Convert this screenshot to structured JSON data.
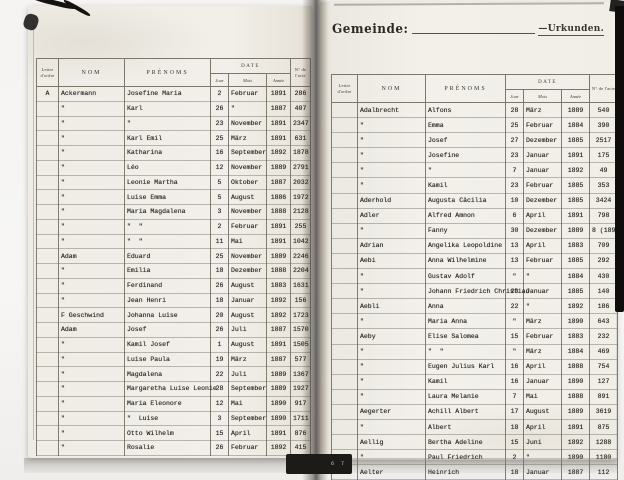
{
  "colors": {
    "page": "#f2efe9",
    "ink": "#2f2d29",
    "line": "#5b564d"
  },
  "right_header": {
    "gemeinde_label": "Gemeinde:",
    "urkunden_label": "—Urkunden.",
    "gutter_mark": "6 7"
  },
  "table_headers": {
    "lettre": "Lettre d'ordre",
    "nom": "NOM",
    "prenoms": "PRÉNOMS",
    "date": "DATE",
    "jour": "Jour",
    "mois": "Mois",
    "annee": "Année",
    "acte": "N° de l'acte"
  },
  "left_page": {
    "rows": [
      [
        "A",
        "Ackermann",
        "Josefine Maria",
        "2",
        "Februar",
        "1891",
        "286"
      ],
      [
        "",
        "\"",
        "Karl",
        "26",
        "\"",
        "1887",
        "407"
      ],
      [
        "",
        "\"",
        "\"",
        "23",
        "November",
        "1891",
        "2347"
      ],
      [
        "",
        "\"",
        "Karl Emil",
        "25",
        "März",
        "1891",
        "631"
      ],
      [
        "",
        "\"",
        "Katharina",
        "16",
        "September",
        "1892",
        "1878"
      ],
      [
        "",
        "\"",
        "Léo",
        "12",
        "November",
        "1889",
        "2791"
      ],
      [
        "",
        "\"",
        "Leonie Martha",
        "5",
        "Oktober",
        "1887",
        "2032"
      ],
      [
        "",
        "\"",
        "Luise Emma",
        "5",
        "August",
        "1886",
        "1972"
      ],
      [
        "",
        "\"",
        "Maria Magdalena",
        "3",
        "November",
        "1888",
        "2128"
      ],
      [
        "",
        "\"",
        "\"  \"",
        "2",
        "Februar",
        "1891",
        "255"
      ],
      [
        "",
        "\"",
        "\"  \"",
        "11",
        "Mai",
        "1891",
        "1042"
      ],
      [
        "",
        "Adam",
        "Eduard",
        "25",
        "November",
        "1889",
        "2246"
      ],
      [
        "",
        "\"",
        "Emilia",
        "18",
        "Dezember",
        "1888",
        "2204"
      ],
      [
        "",
        "\"",
        "Ferdinand",
        "26",
        "August",
        "1883",
        "1631"
      ],
      [
        "",
        "\"",
        "Jean Henri",
        "18",
        "Januar",
        "1892",
        "156"
      ],
      [
        "",
        "F Geschwind",
        "Johanna Luise",
        "20",
        "August",
        "1892",
        "1723"
      ],
      [
        "",
        "Adam",
        "Josef",
        "26",
        "Juli",
        "1887",
        "1570"
      ],
      [
        "",
        "\"",
        "Kamil Josef",
        "1",
        "August",
        "1891",
        "1505"
      ],
      [
        "",
        "\"",
        "Luise Paula",
        "19",
        "März",
        "1887",
        "577"
      ],
      [
        "",
        "\"",
        "Magdalena",
        "22",
        "Juli",
        "1889",
        "1367"
      ],
      [
        "",
        "\"",
        "Margaretha Luise Leonie",
        "28",
        "September",
        "1889",
        "1927"
      ],
      [
        "",
        "\"",
        "Maria Eleonore",
        "12",
        "Mai",
        "1890",
        "917"
      ],
      [
        "",
        "\"",
        "\"  Luise",
        "3",
        "September",
        "1890",
        "1711"
      ],
      [
        "",
        "\"",
        "Otto Wilhelm",
        "15",
        "April",
        "1891",
        "876"
      ],
      [
        "",
        "\"",
        "Rosalie",
        "26",
        "Februar",
        "1892",
        "415"
      ]
    ]
  },
  "right_page": {
    "rows": [
      [
        "",
        "Adalbrecht",
        "Alfons",
        "28",
        "März",
        "1889",
        "540"
      ],
      [
        "",
        "\"",
        "Emma",
        "25",
        "Februar",
        "1884",
        "390"
      ],
      [
        "",
        "\"",
        "Josef",
        "27",
        "Dezember",
        "1885",
        "2517"
      ],
      [
        "",
        "\"",
        "Josefine",
        "23",
        "Januar",
        "1891",
        "175"
      ],
      [
        "",
        "\"",
        "\"",
        "7",
        "Januar",
        "1892",
        "49"
      ],
      [
        "",
        "\"",
        "Kamil",
        "23",
        "Februar",
        "1885",
        "353"
      ],
      [
        "",
        "Aderhold",
        "Augusta Cäcilia",
        "10",
        "Dezember",
        "1885",
        "3424"
      ],
      [
        "",
        "Adler",
        "Alfred Amnon",
        "6",
        "April",
        "1891",
        "798"
      ],
      [
        "",
        "\"",
        "Fanny",
        "30",
        "Dezember",
        "1889",
        "8 (1890)"
      ],
      [
        "",
        "Adrian",
        "Angelika Leopoldine",
        "13",
        "April",
        "1883",
        "709"
      ],
      [
        "",
        "Aebi",
        "Anna Wilhelmine",
        "13",
        "Februar",
        "1885",
        "292"
      ],
      [
        "",
        "\"",
        "Gustav Adolf",
        "\"",
        "\"",
        "1884",
        "430"
      ],
      [
        "",
        "\"",
        "Johann Friedrich Christian",
        "20",
        "Januar",
        "1885",
        "140"
      ],
      [
        "",
        "Aebli",
        "Anna",
        "22",
        "\"",
        "1892",
        "186"
      ],
      [
        "",
        "\"",
        "Maria Anna",
        "\"",
        "März",
        "1890",
        "643"
      ],
      [
        "",
        "Aeby",
        "Elise Salomea",
        "15",
        "Februar",
        "1883",
        "232"
      ],
      [
        "",
        "\"",
        "\"  \"",
        "\"",
        "März",
        "1884",
        "469"
      ],
      [
        "",
        "\"",
        "Eugen Julius Karl",
        "16",
        "April",
        "1888",
        "754"
      ],
      [
        "",
        "\"",
        "Kamil",
        "16",
        "Januar",
        "1890",
        "127"
      ],
      [
        "",
        "\"",
        "Laura Melanie",
        "7",
        "Mai",
        "1888",
        "891"
      ],
      [
        "",
        "Aegerter",
        "Achill Albert",
        "17",
        "August",
        "1889",
        "3619"
      ],
      [
        "",
        "\"",
        "Albert",
        "18",
        "April",
        "1891",
        "875"
      ],
      [
        "",
        "Aellig",
        "Bertha Adeline",
        "15",
        "Juni",
        "1892",
        "1288"
      ],
      [
        "",
        "\"",
        "Paul Friedrich",
        "2",
        "\"",
        "1890",
        "1180"
      ],
      [
        "",
        "Aelter",
        "Heinrich",
        "18",
        "Januar",
        "1887",
        "112"
      ]
    ]
  }
}
